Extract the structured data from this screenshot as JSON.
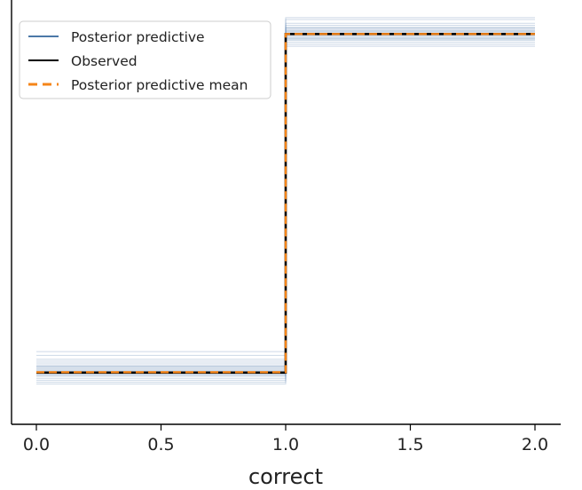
{
  "chart_data": {
    "type": "line",
    "subtype": "step",
    "xlabel": "correct",
    "ylabel": "",
    "xlim": [
      -0.1,
      2.1
    ],
    "ylim": [
      0.0,
      1.0
    ],
    "xticks": [
      "0.0",
      "0.5",
      "1.0",
      "1.5",
      "2.0"
    ],
    "xtick_values": [
      0.0,
      0.5,
      1.0,
      1.5,
      2.0
    ],
    "grid": false,
    "legend_position": "top-left",
    "legend": [
      {
        "label": "Posterior predictive",
        "color": "#4c78a8",
        "style": "solid"
      },
      {
        "label": "Observed",
        "color": "#000000",
        "style": "solid"
      },
      {
        "label": "Posterior predictive mean",
        "color": "#f58518",
        "style": "dashed"
      }
    ],
    "step_x": [
      0.0,
      1.0,
      2.0
    ],
    "posterior_predictive_low_levels": [
      0.045,
      0.05,
      0.055,
      0.06,
      0.065,
      0.068,
      0.07,
      0.072,
      0.075,
      0.078,
      0.08,
      0.082,
      0.085,
      0.088,
      0.09,
      0.092,
      0.095,
      0.1,
      0.105,
      0.11,
      0.12,
      0.13
    ],
    "posterior_predictive_high_levels": [
      0.93,
      0.935,
      0.94,
      0.945,
      0.948,
      0.95,
      0.952,
      0.955,
      0.958,
      0.96,
      0.962,
      0.965,
      0.968,
      0.97,
      0.972,
      0.975,
      0.978,
      0.98,
      0.985,
      0.99,
      1.0,
      1.005
    ],
    "observed": {
      "low": 0.075,
      "high": 0.962
    },
    "posterior_predictive_mean": {
      "low": 0.076,
      "high": 0.962
    }
  },
  "colors": {
    "posterior_predictive": "#4c78a8",
    "observed": "#000000",
    "mean": "#f58518",
    "axis": "#000000"
  }
}
